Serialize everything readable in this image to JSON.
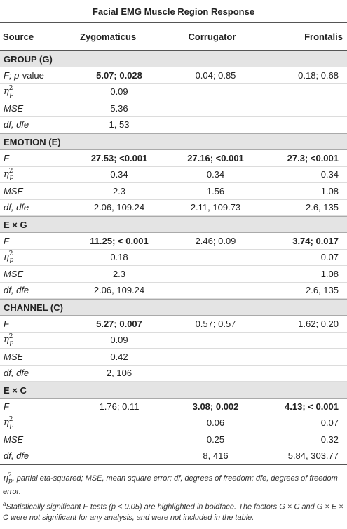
{
  "table": {
    "title": "Facial EMG Muscle Region Response",
    "columns": [
      "Source",
      "Zygomaticus",
      "Corrugator",
      "Frontalis"
    ],
    "sections": [
      {
        "label": "GROUP (G)",
        "rows": [
          {
            "source": "F; p-value",
            "z": "5.07; 0.028",
            "z_bold": true,
            "c": "0.04; 0.85",
            "c_bold": false,
            "f": "0.18; 0.68",
            "f_bold": false
          },
          {
            "source": "eta",
            "z": "0.09",
            "c": "",
            "f": ""
          },
          {
            "source": "MSE",
            "z": "5.36",
            "c": "",
            "f": ""
          },
          {
            "source": "df, dfe",
            "z": "1, 53",
            "c": "",
            "f": ""
          }
        ]
      },
      {
        "label": "EMOTION (E)",
        "rows": [
          {
            "source": "F",
            "z": "27.53; <0.001",
            "z_bold": true,
            "c": "27.16; <0.001",
            "c_bold": true,
            "f": "27.3; <0.001",
            "f_bold": true
          },
          {
            "source": "eta",
            "z": "0.34",
            "c": "0.34",
            "f": "0.34"
          },
          {
            "source": "MSE",
            "z": "2.3",
            "c": "1.56",
            "f": "1.08"
          },
          {
            "source": "df, dfe",
            "z": "2.06, 109.24",
            "c": "2.11, 109.73",
            "f": "2.6, 135"
          }
        ]
      },
      {
        "label": "E × G",
        "rows": [
          {
            "source": "F",
            "z": "11.25; < 0.001",
            "z_bold": true,
            "c": "2.46; 0.09",
            "c_bold": false,
            "f": "3.74; 0.017",
            "f_bold": true
          },
          {
            "source": "eta",
            "z": "0.18",
            "c": "",
            "f": "0.07"
          },
          {
            "source": "MSE",
            "z": "2.3",
            "c": "",
            "f": "1.08"
          },
          {
            "source": "df, dfe",
            "z": "2.06, 109.24",
            "c": "",
            "f": "2.6, 135"
          }
        ]
      },
      {
        "label": "CHANNEL (C)",
        "rows": [
          {
            "source": "F",
            "z": "5.27; 0.007",
            "z_bold": true,
            "c": "0.57; 0.57",
            "c_bold": false,
            "f": "1.62; 0.20",
            "f_bold": false
          },
          {
            "source": "eta",
            "z": "0.09",
            "c": "",
            "f": ""
          },
          {
            "source": "MSE",
            "z": "0.42",
            "c": "",
            "f": ""
          },
          {
            "source": "df, dfe",
            "z": "2, 106",
            "c": "",
            "f": ""
          }
        ]
      },
      {
        "label": "E × C",
        "rows": [
          {
            "source": "F",
            "z": "1.76; 0.11",
            "z_bold": false,
            "c": "3.08; 0.002",
            "c_bold": true,
            "f": "4.13; < 0.001",
            "f_bold": true
          },
          {
            "source": "eta",
            "z": "",
            "c": "0.06",
            "f": "0.07"
          },
          {
            "source": "MSE",
            "z": "",
            "c": "0.25",
            "f": "0.32"
          },
          {
            "source": "df, dfe",
            "z": "",
            "c": "8, 416",
            "f": "5.84, 303.77"
          }
        ]
      }
    ],
    "eta_symbol": "η",
    "eta_sup": "2",
    "eta_sub": "p"
  },
  "footnotes": {
    "line1": "η²p, partial eta-squared; MSE, mean square error; df, degrees of freedom; dfe, degrees of freedom error.",
    "line2_marker": "a",
    "line2": "Statistically significant F-tests (p < 0.05) are highlighted in boldface. The factors G × C and G × E × C were not significant for any analysis, and were not included in the table."
  }
}
